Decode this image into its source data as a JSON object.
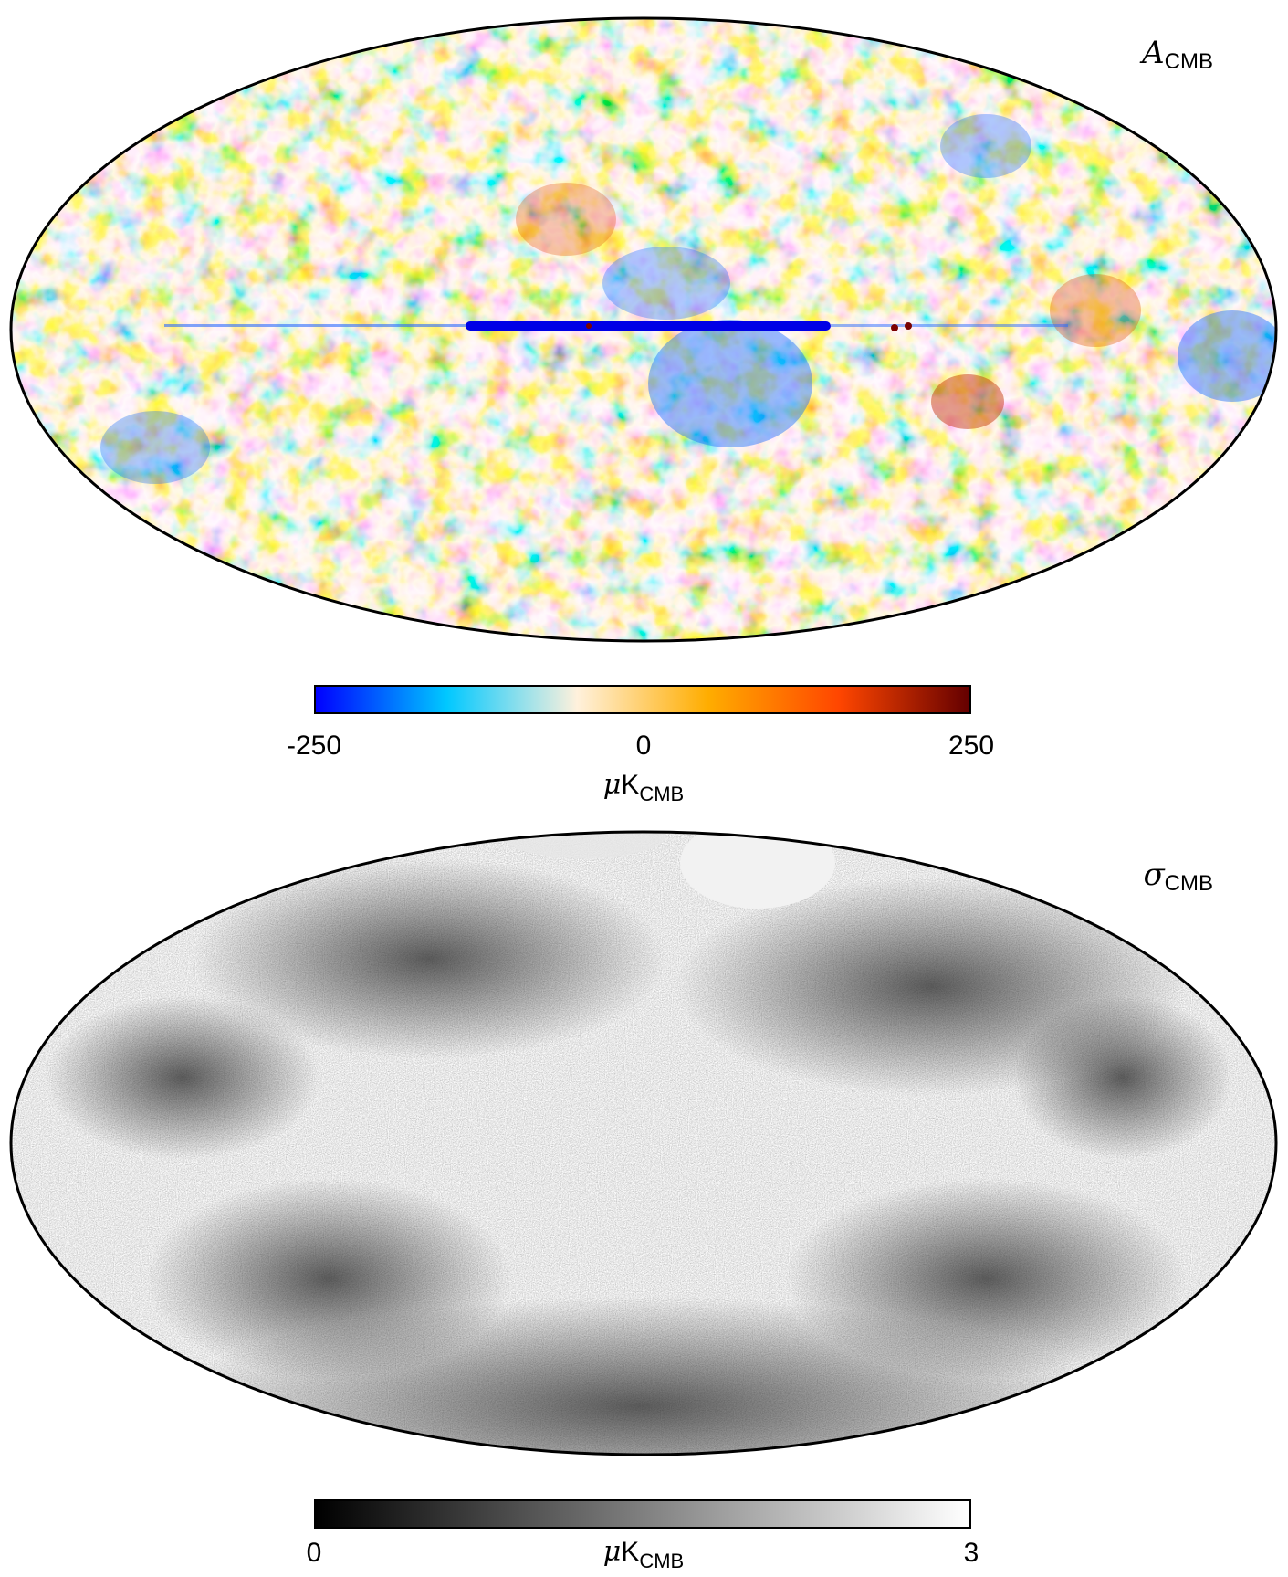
{
  "maps": [
    {
      "title_symbol": "A",
      "title_subscript": "CMB",
      "colormap": "planck",
      "colors": [
        "#0000ff",
        "#00c8ff",
        "#fff1dc",
        "#ffad00",
        "#ff4600",
        "#640000"
      ],
      "colorbar": {
        "min_label": "-250",
        "mid_label": "0",
        "max_label": "250",
        "unit_symbol": "μ",
        "unit_main": "K",
        "unit_subscript": "CMB"
      }
    },
    {
      "title_symbol": "σ",
      "title_subscript": "CMB",
      "colormap": "grayscale",
      "colors": [
        "#000000",
        "#ffffff"
      ],
      "colorbar": {
        "min_label": "0",
        "max_label": "3",
        "unit_symbol": "μ",
        "unit_main": "K",
        "unit_subscript": "CMB"
      }
    }
  ]
}
